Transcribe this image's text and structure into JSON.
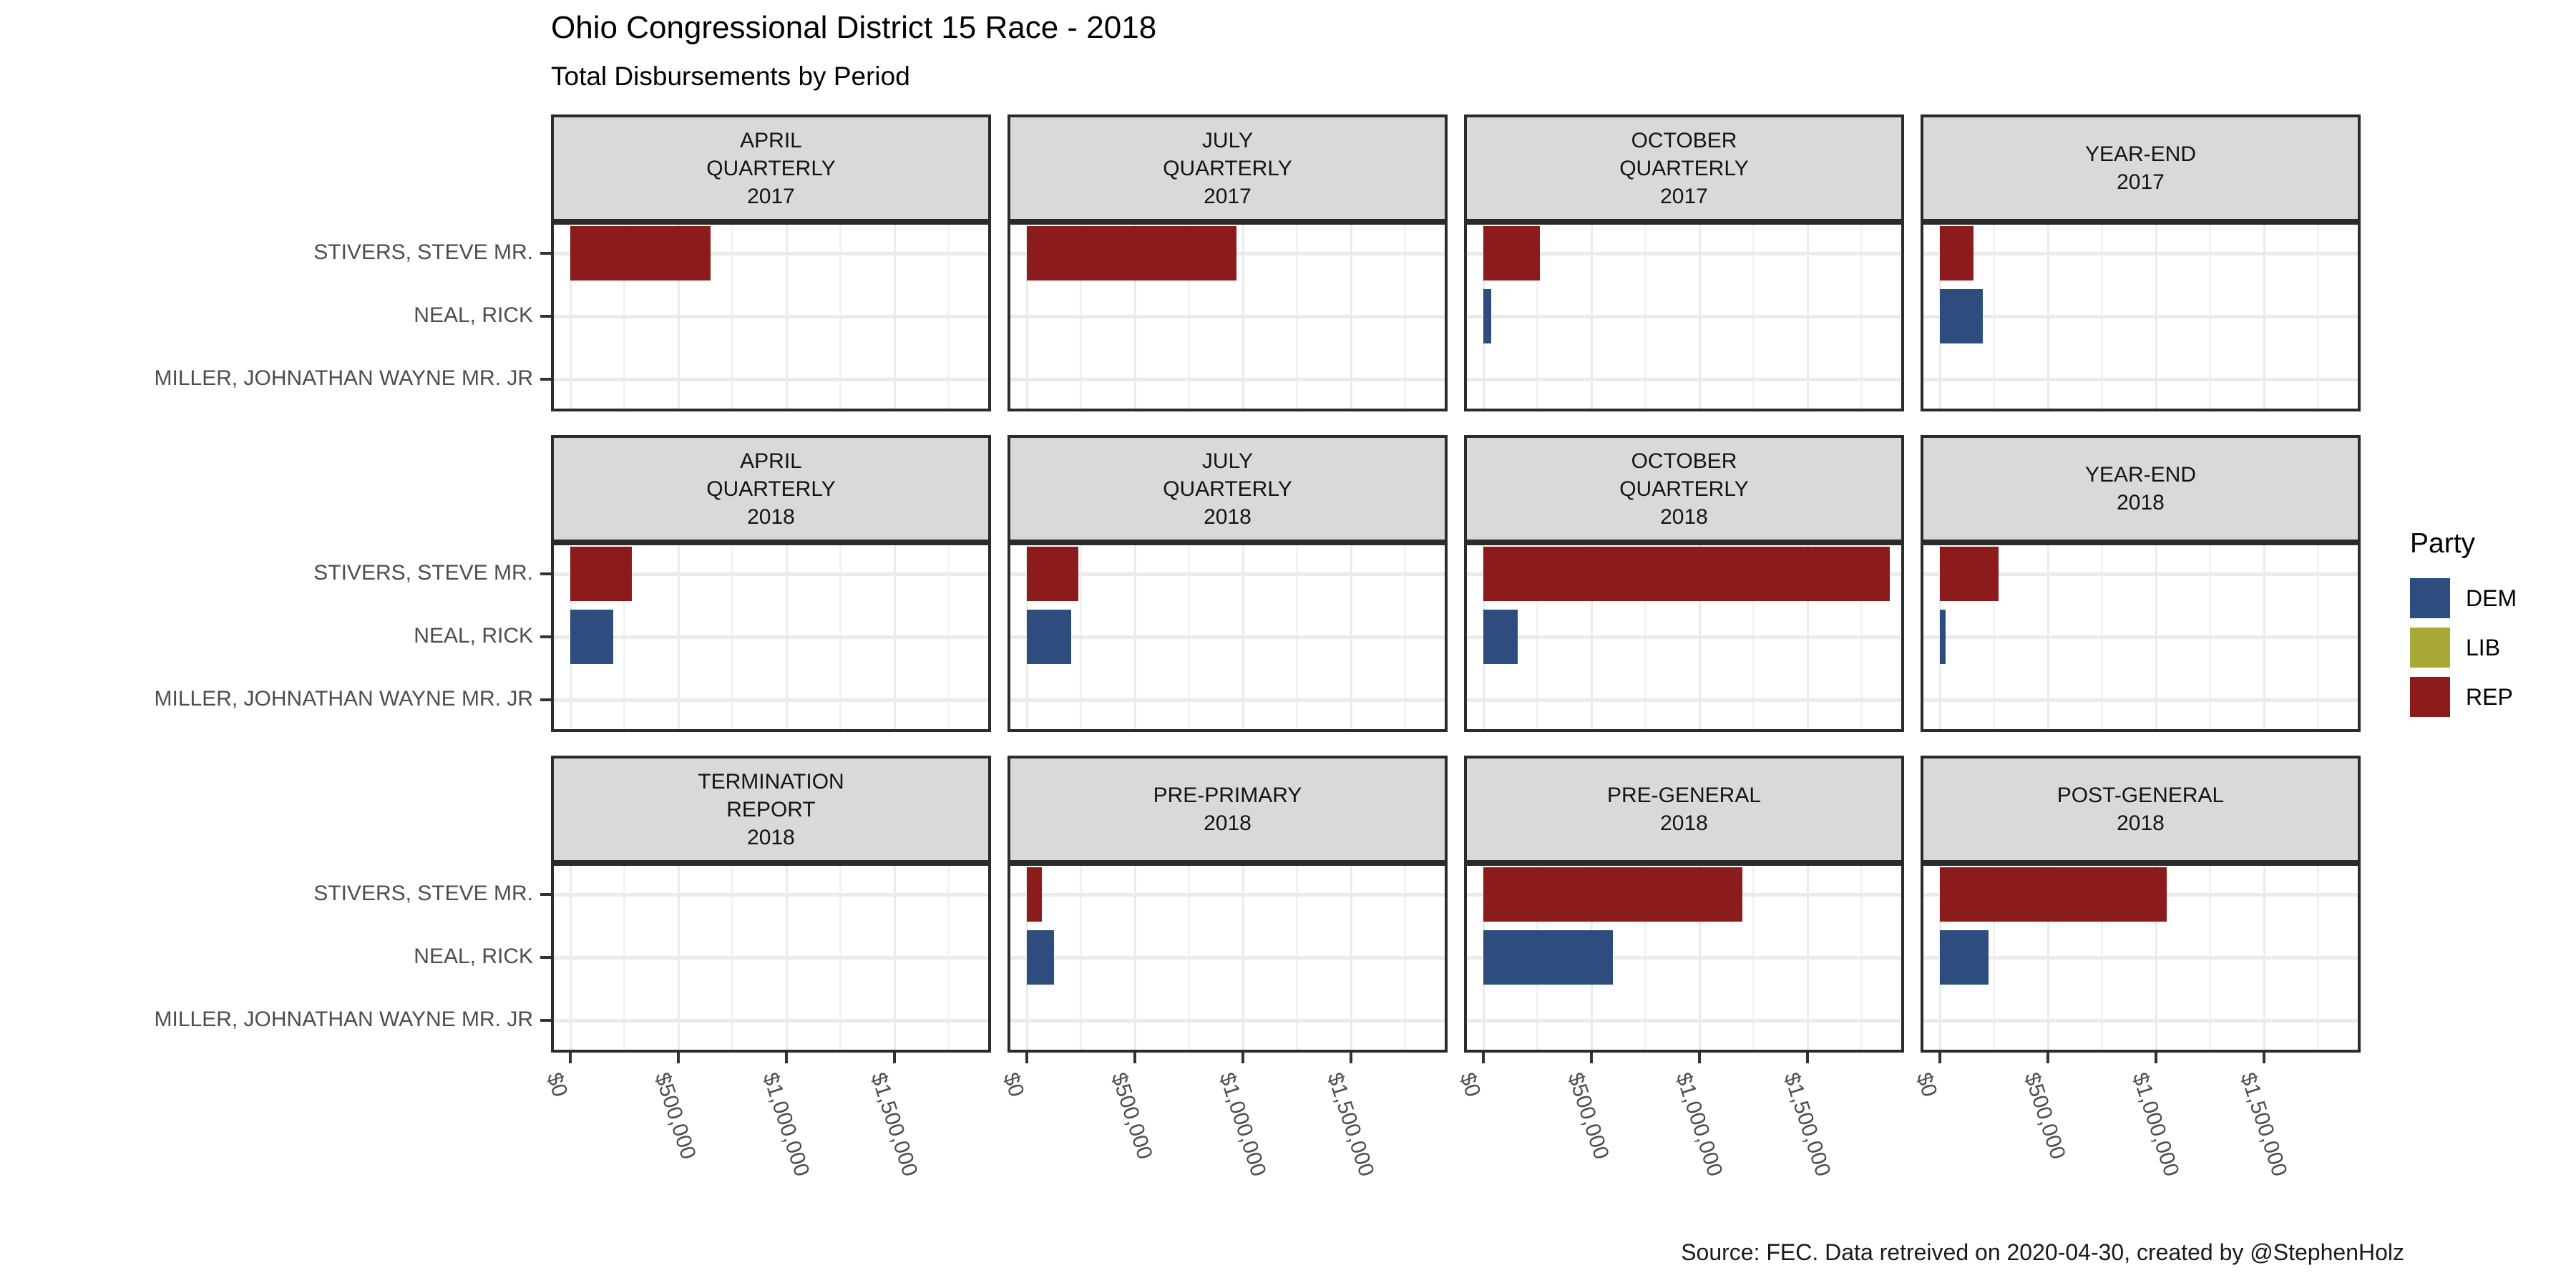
{
  "title": "Ohio Congressional District 15 Race - 2018",
  "subtitle": "Total Disbursements by Period",
  "caption": "Source: FEC. Data retreived on 2020-04-30, created by @StephenHolz",
  "legend": {
    "title": "Party",
    "items": [
      {
        "label": "DEM",
        "color": "#2c4d7d"
      },
      {
        "label": "LIB",
        "color": "#a9a938"
      },
      {
        "label": "REP",
        "color": "#8c1b1b"
      }
    ]
  },
  "chart_data": {
    "type": "bar",
    "orientation": "horizontal",
    "title": "Ohio Congressional District 15 Race - 2018",
    "subtitle": "Total Disbursements by Period",
    "xlabel": "",
    "ylabel": "",
    "xlim": [
      0,
      1950000
    ],
    "x_tick_labels": [
      "$0",
      "$500,000",
      "$1,000,000",
      "$1,500,000"
    ],
    "x_tick_values": [
      0,
      500000,
      1000000,
      1500000
    ],
    "gridline_step": 250000,
    "grid": "vertical every $250,000; horizontal at each candidate row",
    "legend_position": "right",
    "categories": [
      "STIVERS, STEVE MR.",
      "NEAL, RICK",
      "MILLER, JOHNATHAN WAYNE MR. JR"
    ],
    "category_parties": [
      "REP",
      "DEM",
      "LIB"
    ],
    "party_colors": {
      "DEM": "#2c4d7d",
      "LIB": "#a9a938",
      "REP": "#8c1b1b"
    },
    "facet_layout": {
      "rows": 3,
      "cols": 4
    },
    "facets": [
      {
        "strip": [
          "APRIL",
          "QUARTERLY",
          "2017"
        ],
        "values": [
          650000,
          0,
          0
        ]
      },
      {
        "strip": [
          "JULY",
          "QUARTERLY",
          "2017"
        ],
        "values": [
          970000,
          0,
          0
        ]
      },
      {
        "strip": [
          "OCTOBER",
          "QUARTERLY",
          "2017"
        ],
        "values": [
          260000,
          35000,
          0
        ]
      },
      {
        "strip": [
          "YEAR-END",
          "2017"
        ],
        "values": [
          155000,
          200000,
          0
        ]
      },
      {
        "strip": [
          "APRIL",
          "QUARTERLY",
          "2018"
        ],
        "values": [
          285000,
          200000,
          0
        ]
      },
      {
        "strip": [
          "JULY",
          "QUARTERLY",
          "2018"
        ],
        "values": [
          240000,
          205000,
          0
        ]
      },
      {
        "strip": [
          "OCTOBER",
          "QUARTERLY",
          "2018"
        ],
        "values": [
          1880000,
          160000,
          0
        ]
      },
      {
        "strip": [
          "YEAR-END",
          "2018"
        ],
        "values": [
          270000,
          25000,
          0
        ]
      },
      {
        "strip": [
          "TERMINATION",
          "REPORT",
          "2018"
        ],
        "values": [
          0,
          0,
          0
        ]
      },
      {
        "strip": [
          "PRE-PRIMARY",
          "2018"
        ],
        "values": [
          70000,
          125000,
          0
        ]
      },
      {
        "strip": [
          "PRE-GENERAL",
          "2018"
        ],
        "values": [
          1200000,
          600000,
          0
        ]
      },
      {
        "strip": [
          "POST-GENERAL",
          "2018"
        ],
        "values": [
          1050000,
          225000,
          0
        ]
      }
    ]
  }
}
